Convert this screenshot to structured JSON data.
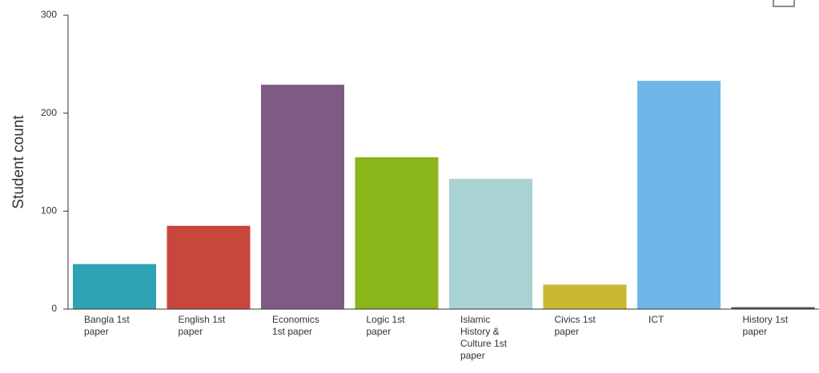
{
  "chart_data": {
    "type": "bar",
    "y_label": "Student count",
    "categories": [
      "Bangla 1st paper",
      "English 1st paper",
      "Economics 1st paper",
      "Logic 1st paper",
      "Islamic History & Culture 1st paper",
      "Civics 1st paper",
      "ICT",
      "History 1st paper"
    ],
    "values": [
      46,
      85,
      229,
      155,
      133,
      25,
      233,
      2
    ],
    "colors": [
      "#2ea3b3",
      "#c9463d",
      "#7d5b82",
      "#8ab51b",
      "#a9d2d2",
      "#c9b731",
      "#6fb7e9",
      "#555555"
    ],
    "ylim": [
      0,
      300
    ],
    "yticks": [
      0,
      100,
      200,
      300
    ],
    "grid": false
  }
}
